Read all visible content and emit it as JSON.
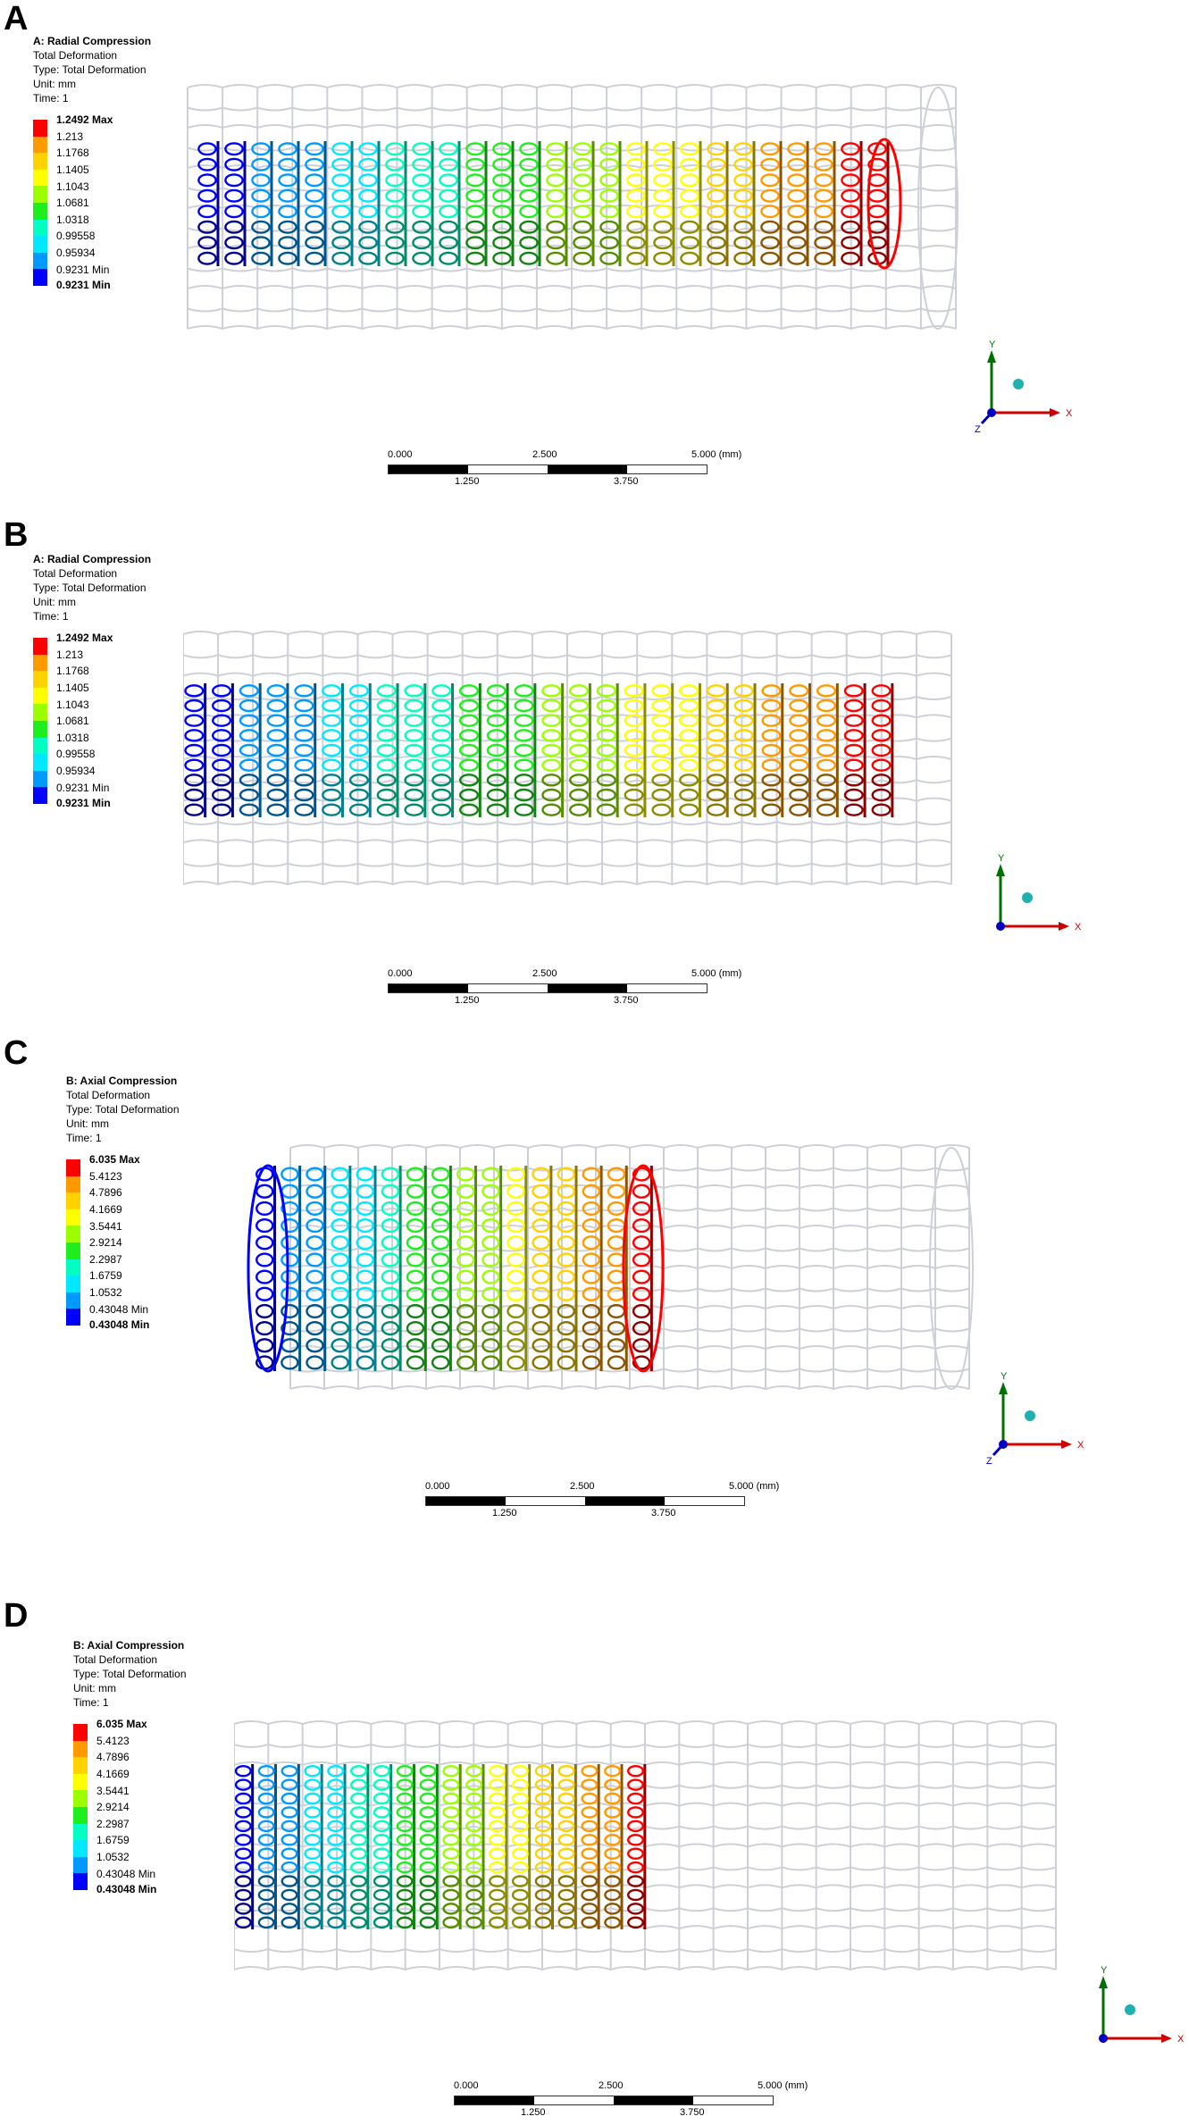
{
  "panels": [
    {
      "letter": "A",
      "title": "A: Radial Compression",
      "lines": [
        "Total Deformation",
        "Type: Total Deformation",
        "Unit: mm",
        "Time: 1"
      ],
      "scale": {
        "max": "1.2492 Max",
        "levels": [
          "1.213",
          "1.1768",
          "1.1405",
          "1.1043",
          "1.0681",
          "1.0318",
          "0.99558",
          "0.95934"
        ],
        "min": "0.9231 Min"
      },
      "triad": {
        "y": "Y",
        "x": "X",
        "z": "Z"
      },
      "scalebar": {
        "top": [
          "0.000",
          "2.500",
          "5.000 (mm)"
        ],
        "bottom": [
          "1.250",
          "3.750"
        ]
      }
    },
    {
      "letter": "B",
      "title": "A: Radial Compression",
      "lines": [
        "Total Deformation",
        "Type: Total Deformation",
        "Unit: mm",
        "Time: 1"
      ],
      "scale": {
        "max": "1.2492 Max",
        "levels": [
          "1.213",
          "1.1768",
          "1.1405",
          "1.1043",
          "1.0681",
          "1.0318",
          "0.99558",
          "0.95934"
        ],
        "min": "0.9231 Min"
      },
      "triad": {
        "y": "Y",
        "x": "X"
      },
      "scalebar": {
        "top": [
          "0.000",
          "2.500",
          "5.000 (mm)"
        ],
        "bottom": [
          "1.250",
          "3.750"
        ]
      }
    },
    {
      "letter": "C",
      "title": "B: Axial Compression",
      "lines": [
        "Total Deformation",
        "Type: Total Deformation",
        "Unit: mm",
        "Time: 1"
      ],
      "scale": {
        "max": "6.035 Max",
        "levels": [
          "5.4123",
          "4.7896",
          "4.1669",
          "3.5441",
          "2.9214",
          "2.2987",
          "1.6759",
          "1.0532"
        ],
        "min": "0.43048 Min"
      },
      "triad": {
        "y": "Y",
        "x": "X",
        "z": "Z"
      },
      "scalebar": {
        "top": [
          "0.000",
          "2.500",
          "5.000 (mm)"
        ],
        "bottom": [
          "1.250",
          "3.750"
        ]
      }
    },
    {
      "letter": "D",
      "title": "B: Axial Compression",
      "lines": [
        "Total Deformation",
        "Type: Total Deformation",
        "Unit: mm",
        "Time: 1"
      ],
      "scale": {
        "max": "6.035 Max",
        "levels": [
          "5.4123",
          "4.7896",
          "4.1669",
          "3.5441",
          "2.9214",
          "2.2987",
          "1.6759",
          "1.0532"
        ],
        "min": "0.43048 Min"
      },
      "triad": {
        "y": "Y",
        "x": "X"
      },
      "scalebar": {
        "top": [
          "0.000",
          "2.500",
          "5.000 (mm)"
        ],
        "bottom": [
          "1.250",
          "3.750"
        ]
      }
    }
  ],
  "colors": {
    "scale": [
      "#ff0000",
      "#ff9900",
      "#ffd200",
      "#ffff00",
      "#9bff00",
      "#1eee1e",
      "#00ffc0",
      "#00e8ff",
      "#0099ff",
      "#0000ff"
    ],
    "undeformed": "#c8ccd2",
    "axis_x": "#d00000",
    "axis_y": "#007000",
    "axis_z": "#0000c0",
    "ball": "#20b0b0"
  }
}
